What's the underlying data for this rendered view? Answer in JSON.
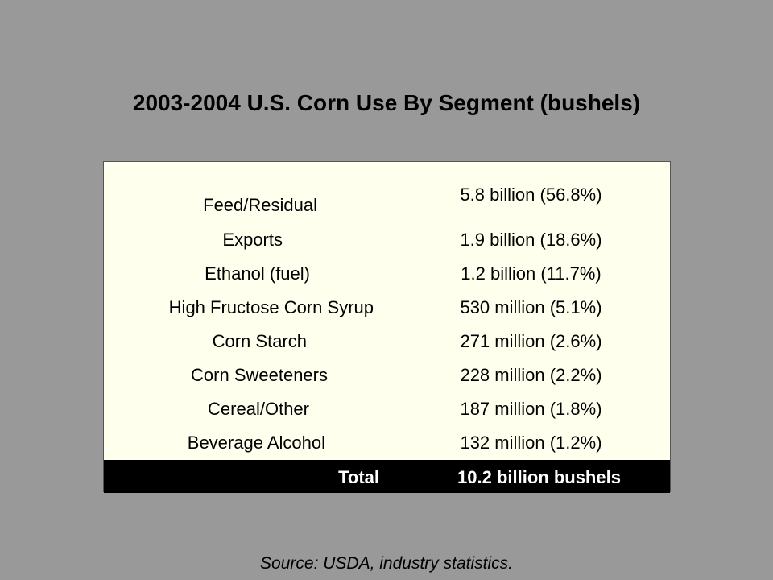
{
  "title": "2003-2004 U.S. Corn Use By Segment (bushels)",
  "rows": [
    {
      "segment": "Feed/Residual",
      "amount": "5.8 billion  (56.8%)"
    },
    {
      "segment": "Exports",
      "amount": "1.9 billion  (18.6%)"
    },
    {
      "segment": "Ethanol (fuel)",
      "amount": "1.2 billion  (11.7%)"
    },
    {
      "segment": "High Fructose Corn Syrup",
      "amount": "530 million  (5.1%)"
    },
    {
      "segment": "Corn Starch",
      "amount": "271 million  (2.6%)"
    },
    {
      "segment": "Corn Sweeteners",
      "amount": "228 million  (2.2%)"
    },
    {
      "segment": "Cereal/Other",
      "amount": "187 million  (1.8%)"
    },
    {
      "segment": "Beverage Alcohol",
      "amount": "132 million  (1.2%)"
    }
  ],
  "total": {
    "label": "Total",
    "value": "10.2 billion bushels"
  },
  "source": "Source: USDA, industry statistics.",
  "colors": {
    "background": "#999999",
    "table_fill": "#ffffee",
    "total_fill": "#000000"
  }
}
